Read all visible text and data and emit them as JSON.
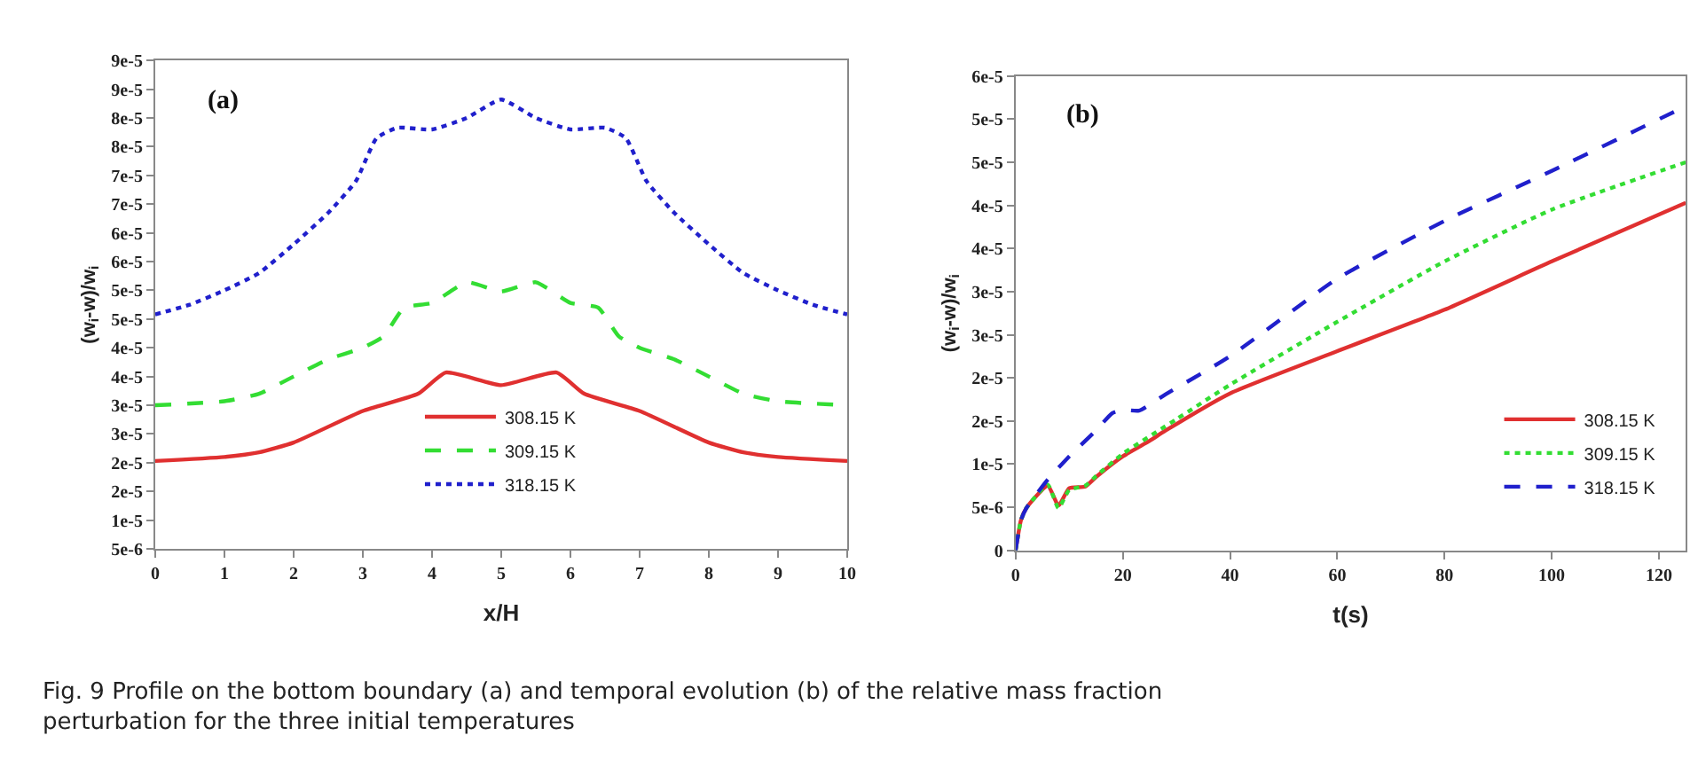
{
  "chart_data": [
    {
      "type": "line",
      "xlabel": "x/H",
      "ylabel": "(w$_{i}$-w)/w$_{i}$",
      "annotations": [
        "(a)",
        "Fig. 9 Profile on the bottom boundary (a) and temporal evolution (b) of the relative mass fraction perturbation for the three initial temperatures"
      ],
      "legend": "bottom",
      "x": [
        0,
        1,
        1.5,
        2,
        3,
        3.8,
        4.2,
        5,
        5.8,
        6.2,
        7,
        8,
        8.5,
        9,
        10
      ],
      "series": [
        {
          "name": "308.15 K",
          "color": "#e03030",
          "line_style": "solid",
          "values": [
            2.03e-05,
            2.1e-05,
            2.18e-05,
            2.35e-05,
            2.9e-05,
            3.2e-05,
            3.57e-05,
            3.35e-05,
            3.57e-05,
            3.2e-05,
            2.9e-05,
            2.35e-05,
            2.18e-05,
            2.1e-05,
            2.03e-05
          ]
        },
        {
          "name": "309.15 K",
          "color": "#33dd33",
          "line_style": "dashed",
          "x": [
            0,
            1,
            1.5,
            2,
            2.5,
            3,
            3.3,
            3.6,
            4,
            4.5,
            5,
            5.5,
            6,
            6.4,
            6.7,
            7,
            7.5,
            8,
            8.5,
            9,
            10
          ],
          "values": [
            3e-05,
            3.07e-05,
            3.2e-05,
            3.5e-05,
            3.8e-05,
            4e-05,
            4.2e-05,
            4.7e-05,
            4.78e-05,
            5.14e-05,
            4.98e-05,
            5.14e-05,
            4.78e-05,
            4.7e-05,
            4.2e-05,
            4e-05,
            3.8e-05,
            3.5e-05,
            3.2e-05,
            3.07e-05,
            3e-05
          ]
        },
        {
          "name": "318.15 K",
          "color": "#2020cc",
          "line_style": "dotted",
          "x": [
            0,
            0.5,
            1,
            1.5,
            2,
            2.5,
            2.9,
            3.2,
            3.5,
            4,
            4.5,
            5,
            5.5,
            6,
            6.5,
            6.8,
            7.1,
            7.5,
            8,
            8.5,
            9,
            9.5,
            10
          ],
          "values": [
            4.58e-05,
            4.75e-05,
            5e-05,
            5.3e-05,
            5.8e-05,
            6.35e-05,
            6.9e-05,
            7.65e-05,
            7.83e-05,
            7.8e-05,
            8e-05,
            8.32e-05,
            8e-05,
            7.8e-05,
            7.83e-05,
            7.65e-05,
            6.9e-05,
            6.35e-05,
            5.8e-05,
            5.3e-05,
            5e-05,
            4.75e-05,
            4.58e-05
          ]
        }
      ],
      "xlim": [
        0,
        10
      ],
      "xticks": [
        0,
        1,
        2,
        3,
        4,
        5,
        6,
        7,
        8,
        9,
        10
      ],
      "ylim": [
        5e-06,
        9e-05
      ],
      "yticks": [
        {
          "value": 5e-06,
          "label": "5e-6"
        },
        {
          "value": 1e-05,
          "label": "1e-5"
        },
        {
          "value": 1.5e-05,
          "label": "2e-5"
        },
        {
          "value": 2e-05,
          "label": "2e-5"
        },
        {
          "value": 2.5e-05,
          "label": "3e-5"
        },
        {
          "value": 3e-05,
          "label": "3e-5"
        },
        {
          "value": 3.5e-05,
          "label": "4e-5"
        },
        {
          "value": 4e-05,
          "label": "4e-5"
        },
        {
          "value": 4.5e-05,
          "label": "5e-5"
        },
        {
          "value": 5e-05,
          "label": "5e-5"
        },
        {
          "value": 5.5e-05,
          "label": "6e-5"
        },
        {
          "value": 6e-05,
          "label": "6e-5"
        },
        {
          "value": 6.5e-05,
          "label": "7e-5"
        },
        {
          "value": 7e-05,
          "label": "7e-5"
        },
        {
          "value": 7.5e-05,
          "label": "8e-5"
        },
        {
          "value": 8e-05,
          "label": "8e-5"
        },
        {
          "value": 8.5e-05,
          "label": "9e-5"
        },
        {
          "value": 9e-05,
          "label": "9e-5"
        }
      ]
    },
    {
      "type": "line",
      "xlabel": "t(s)",
      "ylabel": "(w$_{i}$-w)/w$_{i}$",
      "annotations": [
        "(b)"
      ],
      "legend": "bottom right",
      "x": [
        0,
        1,
        2,
        6,
        8,
        10,
        13,
        15,
        20,
        25,
        28,
        40,
        60,
        80,
        100,
        125
      ],
      "series": [
        {
          "name": "308.15 K",
          "color": "#e03030",
          "line_style": "solid",
          "values": [
            0,
            3.5e-06,
            4.9e-06,
            7.5e-06,
            5.2e-06,
            7.2e-06,
            7.4e-06,
            8.5e-06,
            1.09e-05,
            1.27e-05,
            1.39e-05,
            1.82e-05,
            2.31e-05,
            2.79e-05,
            3.35e-05,
            4.03e-05
          ]
        },
        {
          "name": "309.15 K",
          "color": "#33dd33",
          "line_style": "dotted",
          "x": [
            0,
            1,
            2,
            6,
            8,
            10,
            13,
            15,
            20,
            30,
            40,
            60,
            80,
            100,
            125
          ],
          "values": [
            0,
            3.5e-06,
            4.9e-06,
            7.6e-06,
            4.9e-06,
            7e-06,
            7.5e-06,
            8.6e-06,
            1.12e-05,
            1.52e-05,
            1.92e-05,
            2.65e-05,
            3.35e-05,
            3.95e-05,
            4.5e-05
          ]
        },
        {
          "name": "318.15 K",
          "color": "#2020cc",
          "line_style": "dashed",
          "x": [
            0,
            1,
            2,
            6,
            10,
            15,
            18,
            20,
            23,
            28,
            40,
            60,
            80,
            100,
            125
          ],
          "values": [
            0,
            3.5e-06,
            4.9e-06,
            8.2e-06,
            1.09e-05,
            1.39e-05,
            1.59e-05,
            1.63e-05,
            1.62e-05,
            1.81e-05,
            2.25e-05,
            3.15e-05,
            3.82e-05,
            4.4e-05,
            5.15e-05
          ]
        }
      ],
      "xlim": [
        0,
        125
      ],
      "xticks": [
        0,
        20,
        40,
        60,
        80,
        100,
        120
      ],
      "ylim": [
        0,
        5.5e-05
      ],
      "yticks": [
        {
          "value": 0,
          "label": "0"
        },
        {
          "value": 5e-06,
          "label": "5e-6"
        },
        {
          "value": 1e-05,
          "label": "1e-5"
        },
        {
          "value": 1.5e-05,
          "label": "2e-5"
        },
        {
          "value": 2e-05,
          "label": "2e-5"
        },
        {
          "value": 2.5e-05,
          "label": "3e-5"
        },
        {
          "value": 3e-05,
          "label": "3e-5"
        },
        {
          "value": 3.5e-05,
          "label": "4e-5"
        },
        {
          "value": 4e-05,
          "label": "4e-5"
        },
        {
          "value": 4.5e-05,
          "label": "5e-5"
        },
        {
          "value": 5e-05,
          "label": "5e-5"
        },
        {
          "value": 5.5e-05,
          "label": "6e-5"
        }
      ]
    }
  ]
}
